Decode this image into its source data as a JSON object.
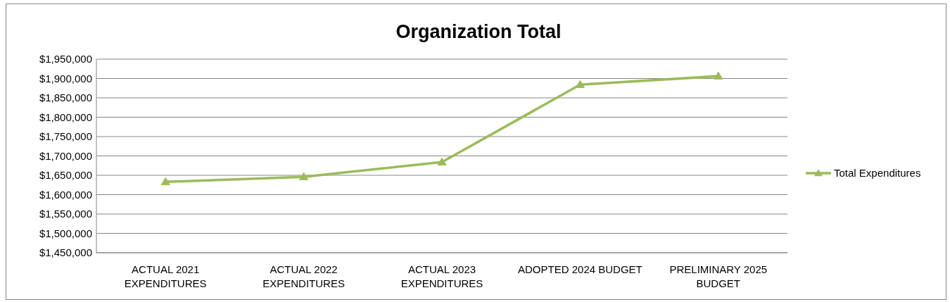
{
  "chart_data": {
    "type": "line",
    "title": "Organization Total",
    "categories": [
      "ACTUAL 2021 EXPENDITURES",
      "ACTUAL 2022 EXPENDITURES",
      "ACTUAL 2023 EXPENDITURES",
      "ADOPTED 2024 BUDGET",
      "PRELIMINARY 2025 BUDGET"
    ],
    "series": [
      {
        "name": "Total Expenditures",
        "color": "#9bbb59",
        "values": [
          1633000,
          1646000,
          1684000,
          1884000,
          1906000
        ]
      }
    ],
    "ylim": [
      1450000,
      1950000
    ],
    "yticks": [
      {
        "value": 1450000,
        "label": "$1,450,000"
      },
      {
        "value": 1500000,
        "label": "$1,500,000"
      },
      {
        "value": 1550000,
        "label": "$1,550,000"
      },
      {
        "value": 1600000,
        "label": "$1,600,000"
      },
      {
        "value": 1650000,
        "label": "$1,650,000"
      },
      {
        "value": 1700000,
        "label": "$1,700,000"
      },
      {
        "value": 1750000,
        "label": "$1,750,000"
      },
      {
        "value": 1800000,
        "label": "$1,800,000"
      },
      {
        "value": 1850000,
        "label": "$1,850,000"
      },
      {
        "value": 1900000,
        "label": "$1,900,000"
      },
      {
        "value": 1950000,
        "label": "$1,950,000"
      }
    ],
    "grid": "y",
    "legend": "right",
    "marker": "triangle",
    "line_style": "solid"
  }
}
